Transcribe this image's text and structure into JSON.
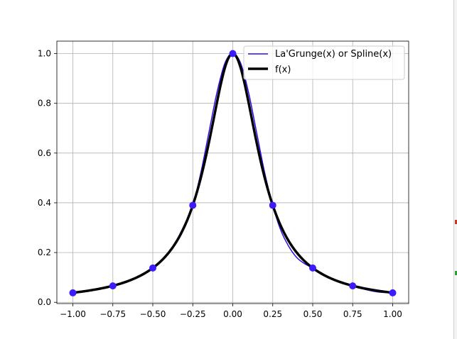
{
  "chart_data": {
    "type": "line",
    "xlim": [
      -1.1,
      1.1
    ],
    "ylim": [
      -0.005,
      1.05
    ],
    "xticks": [
      -1.0,
      -0.75,
      -0.5,
      -0.25,
      0.0,
      0.25,
      0.5,
      0.75,
      1.0
    ],
    "xtick_labels": [
      "−1.00",
      "−0.75",
      "−0.50",
      "−0.25",
      "0.00",
      "0.25",
      "0.50",
      "0.75",
      "1.00"
    ],
    "yticks": [
      0.0,
      0.2,
      0.4,
      0.6,
      0.8,
      1.0
    ],
    "ytick_labels": [
      "0.0",
      "0.2",
      "0.4",
      "0.6",
      "0.8",
      "1.0"
    ],
    "grid": true,
    "legend_position": "top-right",
    "nodes": {
      "x": [
        -1.0,
        -0.75,
        -0.5,
        -0.25,
        0.0,
        0.25,
        0.5,
        0.75,
        1.0
      ],
      "y": [
        0.038,
        0.066,
        0.138,
        0.39,
        1.0,
        0.39,
        0.138,
        0.066,
        0.038
      ],
      "color": "#3b1cff"
    },
    "series": [
      {
        "name": "La'Grunge(x) or Spline(x)",
        "color": "#2a0fe6",
        "line_width": 1.5,
        "x": [
          -1.0,
          -0.9,
          -0.8,
          -0.75,
          -0.7,
          -0.65,
          -0.6,
          -0.55,
          -0.5,
          -0.45,
          -0.4,
          -0.35,
          -0.3,
          -0.25,
          -0.2,
          -0.15,
          -0.1,
          -0.05,
          0.0,
          0.05,
          0.1,
          0.15,
          0.2,
          0.25,
          0.3,
          0.35,
          0.4,
          0.45,
          0.5,
          0.55,
          0.6,
          0.65,
          0.7,
          0.75,
          0.8,
          0.9,
          1.0
        ],
        "y": [
          0.038,
          0.045,
          0.058,
          0.066,
          0.077,
          0.088,
          0.1,
          0.117,
          0.138,
          0.165,
          0.2,
          0.25,
          0.315,
          0.39,
          0.52,
          0.68,
          0.84,
          0.96,
          1.0,
          0.96,
          0.84,
          0.68,
          0.52,
          0.39,
          0.29,
          0.225,
          0.18,
          0.155,
          0.138,
          0.12,
          0.1,
          0.085,
          0.074,
          0.066,
          0.056,
          0.042,
          0.038
        ]
      },
      {
        "name": "f(x)",
        "color": "#000000",
        "line_width": 3.5,
        "formula": "1/(1+25x^2)"
      }
    ]
  },
  "legend": {
    "entries": [
      {
        "label": "La'Grunge(x) or Spline(x)"
      },
      {
        "label": "f(x)"
      }
    ]
  }
}
